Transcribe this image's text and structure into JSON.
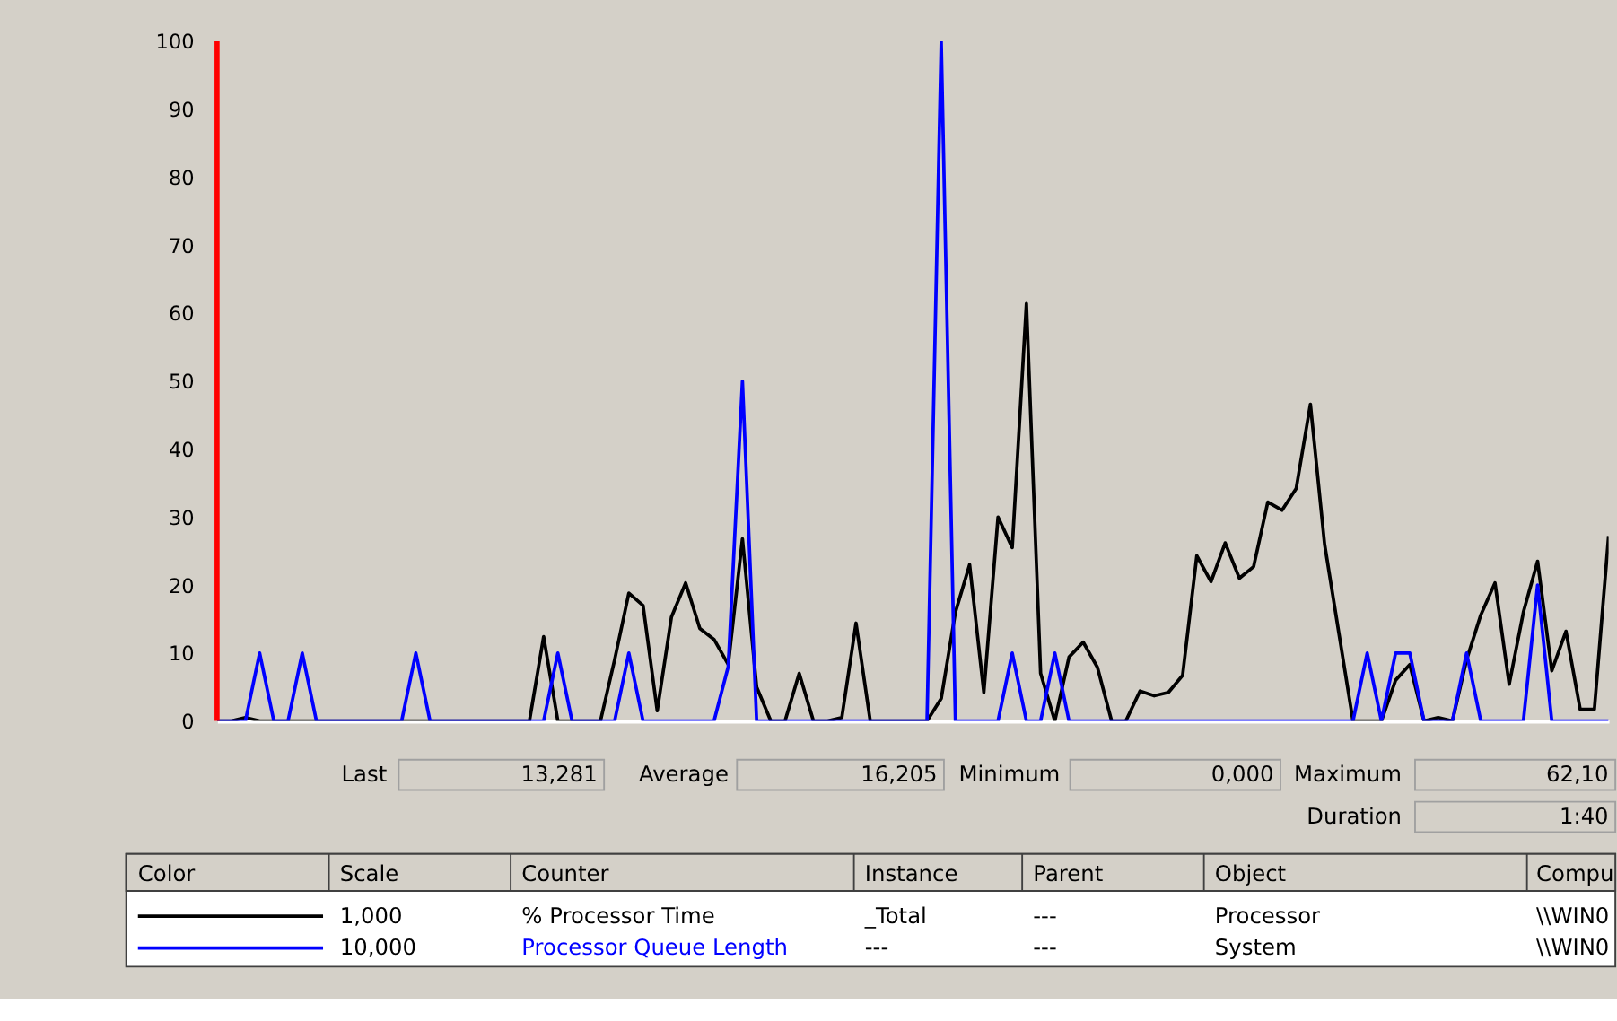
{
  "chart_data": {
    "type": "line",
    "categories": [
      null,
      null,
      null,
      null,
      null,
      null,
      null,
      null,
      null,
      null,
      null,
      null,
      null,
      null,
      null,
      null,
      null,
      null,
      null,
      null,
      null,
      null,
      null,
      null,
      null,
      null,
      null,
      null,
      null,
      null,
      null,
      null,
      null,
      null,
      null,
      null,
      null,
      null,
      null,
      null,
      null,
      null,
      null,
      null,
      null,
      null,
      null,
      null,
      null,
      null,
      null,
      null,
      null,
      null,
      null,
      null,
      null,
      null,
      null,
      null,
      null,
      null,
      null,
      null,
      null,
      null,
      null,
      null,
      null,
      null,
      null,
      null,
      null,
      null,
      null,
      null,
      null,
      null,
      null,
      null,
      null,
      null,
      null,
      null,
      null,
      null,
      null,
      null,
      null,
      null,
      null,
      null,
      null,
      null,
      null,
      null,
      null,
      null,
      null
    ],
    "series": [
      {
        "name": "% Processor Time",
        "color": "#000000",
        "values": [
          0,
          0,
          0.5,
          0,
          0,
          0,
          0,
          0,
          0,
          0,
          0,
          0,
          0,
          0,
          0,
          0,
          0,
          0,
          0,
          0,
          0,
          0,
          0,
          12.4,
          0,
          0,
          0,
          0,
          9,
          18.8,
          17,
          1.5,
          15.3,
          20.3,
          13.6,
          12,
          8.3,
          26.8,
          5,
          0,
          0,
          7,
          0,
          0,
          0.5,
          14.4,
          0,
          0,
          0,
          0,
          0,
          3.3,
          16,
          23,
          4.2,
          30,
          25.5,
          61.4,
          7,
          0,
          9.4,
          11.6,
          7.9,
          0,
          0,
          4.4,
          3.7,
          4.2,
          6.7,
          24.3,
          20.5,
          26.2,
          21,
          22.7,
          32.2,
          31,
          34.2,
          46.6,
          26,
          13,
          0,
          0,
          0,
          6,
          8.3,
          0,
          0.5,
          0,
          9,
          15.6,
          20.3,
          5.4,
          16,
          23.5,
          7.4,
          13.2,
          1.7,
          1.7,
          27.2
        ]
      },
      {
        "name": "Processor Queue Length",
        "color": "#0000ff",
        "values": [
          0,
          0,
          0,
          10,
          0,
          0,
          10,
          0,
          0,
          0,
          0,
          0,
          0,
          0,
          10,
          0,
          0,
          0,
          0,
          0,
          0,
          0,
          0,
          0,
          10,
          0,
          0,
          0,
          0,
          10,
          0,
          0,
          0,
          0,
          0,
          0,
          8,
          50,
          0,
          0,
          0,
          0,
          0,
          0,
          0,
          0,
          0,
          0,
          0,
          0,
          0,
          100,
          0,
          0,
          0,
          0,
          10,
          0,
          0,
          10,
          0,
          0,
          0,
          0,
          0,
          0,
          0,
          0,
          0,
          0,
          0,
          0,
          0,
          0,
          0,
          0,
          0,
          0,
          0,
          0,
          0,
          10,
          0,
          10,
          10,
          0,
          0,
          0,
          10,
          0,
          0,
          0,
          0,
          20,
          0,
          0,
          0,
          0,
          0
        ]
      }
    ],
    "ylim": [
      0,
      100
    ],
    "yticks": [
      0,
      10,
      20,
      30,
      40,
      50,
      60,
      70,
      80,
      90,
      100
    ],
    "grid": false,
    "legend": "bottom",
    "tick_labels": "y",
    "marker": "none",
    "line_style": "solid",
    "annotations": [
      "Last",
      "13,281",
      "Average",
      "16,205",
      "Minimum",
      "0,000",
      "Maximum",
      "62,10",
      "Duration",
      "1:40",
      "Color",
      "Scale",
      "Counter",
      "Instance",
      "Parent",
      "Object",
      "Compu",
      "1,000",
      "_Total",
      "---",
      "Processor",
      "\\\\WIN0",
      "10,000",
      "---",
      "---",
      "System",
      "\\\\WIN0"
    ]
  }
}
